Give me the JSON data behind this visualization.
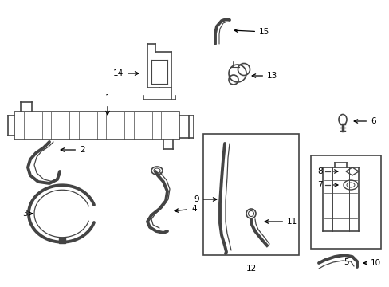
{
  "bg_color": "#ffffff",
  "line_color": "#444444",
  "components": {
    "radiator": {
      "label": "1"
    },
    "hose2": {
      "label": "2"
    },
    "hose3": {
      "label": "3"
    },
    "hose4": {
      "label": "4"
    },
    "reservoir": {
      "label": "5"
    },
    "bolt6": {
      "label": "6"
    },
    "item7": {
      "label": "7"
    },
    "item8": {
      "label": "8"
    },
    "hose9": {
      "label": "9"
    },
    "hose10": {
      "label": "10"
    },
    "item11": {
      "label": "11"
    },
    "box12": {
      "label": "12"
    },
    "pump13": {
      "label": "13"
    },
    "pump14": {
      "label": "14"
    },
    "hose15": {
      "label": "15"
    }
  }
}
